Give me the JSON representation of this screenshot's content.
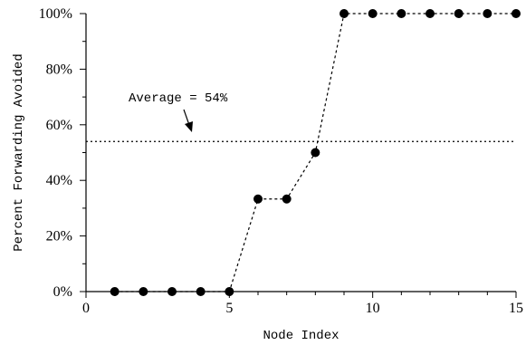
{
  "chart_data": {
    "type": "line",
    "xlabel": "Node Index",
    "ylabel": "Percent Forwarding Avoided",
    "xlim": [
      0,
      15
    ],
    "ylim": [
      0,
      100
    ],
    "x_ticks": [
      {
        "value": 0,
        "label": "0"
      },
      {
        "value": 5,
        "label": "5"
      },
      {
        "value": 10,
        "label": "10"
      },
      {
        "value": 15,
        "label": "15"
      }
    ],
    "x_minor_ticks": [
      1,
      2,
      3,
      4,
      6,
      7,
      8,
      9,
      11,
      12,
      13,
      14
    ],
    "y_ticks": [
      {
        "value": 0,
        "label": "0%"
      },
      {
        "value": 20,
        "label": "20%"
      },
      {
        "value": 40,
        "label": "40%"
      },
      {
        "value": 60,
        "label": "60%"
      },
      {
        "value": 80,
        "label": "80%"
      },
      {
        "value": 100,
        "label": "100%"
      }
    ],
    "y_minor_ticks": [
      10,
      30,
      50,
      70,
      90
    ],
    "grid": false,
    "series": [
      {
        "x": [
          1,
          2,
          3,
          4,
          5,
          6,
          7,
          8,
          9,
          10,
          11,
          12,
          13,
          14,
          15
        ],
        "values": [
          0,
          0,
          0,
          0,
          0,
          33.3,
          33.3,
          50,
          100,
          100,
          100,
          100,
          100,
          100,
          100
        ]
      }
    ],
    "reference_line": {
      "value": 54,
      "label": "Average = 54%"
    }
  }
}
